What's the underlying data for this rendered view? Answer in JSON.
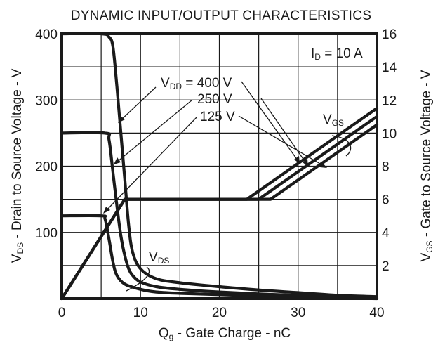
{
  "chart_data": {
    "type": "line",
    "title": "DYNAMIC INPUT/OUTPUT CHARACTERISTICS",
    "xlabel": {
      "main": "Q",
      "sub": "g",
      "rest": " - Gate Charge - nC"
    },
    "ylabel_left": {
      "main": "V",
      "sub": "DS",
      "rest": " - Drain to Source Voltage - V"
    },
    "ylabel_right": {
      "main": "V",
      "sub": "GS",
      "rest": " - Gate to Source Voltage - V"
    },
    "xlim": [
      0,
      40
    ],
    "ylim_left": [
      0,
      400
    ],
    "ylim_right": [
      0,
      16
    ],
    "grid": true,
    "x_ticks": [
      0,
      10,
      20,
      30,
      40
    ],
    "y_left_ticks": [
      100,
      200,
      300,
      400
    ],
    "y_right_ticks": [
      2,
      4,
      6,
      8,
      10,
      12,
      14,
      16
    ],
    "annotation_id": {
      "main": "I",
      "sub": "D",
      "rest": " = 10 A"
    },
    "labels": {
      "vdd_prefix": {
        "main": "V",
        "sub": "DD",
        "rest": " = "
      },
      "vdd_values": [
        "400 V",
        "250 V",
        "125 V"
      ],
      "vgs": {
        "main": "V",
        "sub": "GS"
      },
      "vds": {
        "main": "V",
        "sub": "DS"
      }
    },
    "series_vds": [
      {
        "name": "400 V",
        "points": [
          [
            0,
            400
          ],
          [
            5,
            400
          ],
          [
            6,
            395
          ],
          [
            6.5,
            380
          ],
          [
            7,
            320
          ],
          [
            7.5,
            250
          ],
          [
            8,
            180
          ],
          [
            8.5,
            110
          ],
          [
            9,
            70
          ],
          [
            10,
            45
          ],
          [
            12,
            30
          ],
          [
            15,
            24
          ],
          [
            20,
            18
          ],
          [
            25,
            13
          ],
          [
            30,
            9
          ],
          [
            35,
            5
          ],
          [
            40,
            3
          ]
        ]
      },
      {
        "name": "250 V",
        "points": [
          [
            0,
            250
          ],
          [
            5.5,
            250
          ],
          [
            6,
            240
          ],
          [
            6.5,
            190
          ],
          [
            7,
            140
          ],
          [
            7.5,
            95
          ],
          [
            8,
            65
          ],
          [
            8.5,
            45
          ],
          [
            9,
            35
          ],
          [
            10,
            25
          ],
          [
            12,
            18
          ],
          [
            15,
            14
          ],
          [
            20,
            10
          ],
          [
            25,
            7
          ],
          [
            30,
            5
          ],
          [
            35,
            3
          ],
          [
            40,
            1
          ]
        ]
      },
      {
        "name": "125 V",
        "points": [
          [
            0,
            125
          ],
          [
            5,
            125
          ],
          [
            5.5,
            120
          ],
          [
            6,
            90
          ],
          [
            6.5,
            55
          ],
          [
            7,
            35
          ],
          [
            8,
            22
          ],
          [
            10,
            14
          ],
          [
            12,
            10
          ],
          [
            15,
            8
          ],
          [
            20,
            6
          ],
          [
            25,
            4
          ],
          [
            30,
            2
          ],
          [
            35,
            1
          ],
          [
            40,
            0
          ]
        ]
      }
    ],
    "series_vgs": [
      {
        "name": "400 V",
        "points": [
          [
            0,
            0
          ],
          [
            8,
            6
          ],
          [
            26.5,
            6
          ],
          [
            40,
            10.5
          ]
        ]
      },
      {
        "name": "250 V",
        "points": [
          [
            0,
            0
          ],
          [
            8,
            6
          ],
          [
            25,
            6
          ],
          [
            40,
            11
          ]
        ]
      },
      {
        "name": "125 V",
        "points": [
          [
            0,
            0
          ],
          [
            8,
            6
          ],
          [
            23.5,
            6
          ],
          [
            40,
            11.5
          ]
        ]
      }
    ]
  }
}
